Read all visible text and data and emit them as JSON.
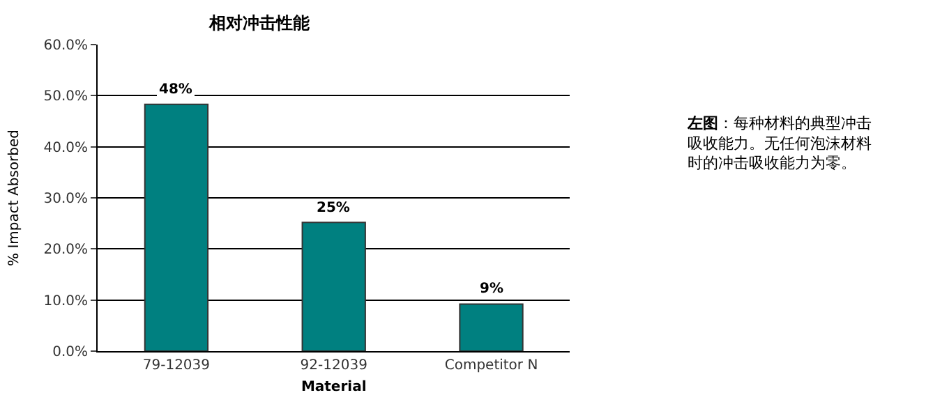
{
  "chart_data": {
    "type": "bar",
    "title": "相对冲击性能",
    "xlabel": "Material",
    "ylabel": "% Impact Absorbed",
    "categories": [
      "79-12039",
      "92-12039",
      "Competitor N"
    ],
    "values": [
      48.3,
      25.2,
      9.2
    ],
    "value_labels": [
      "48%",
      "25%",
      "9%"
    ],
    "color": "#008080",
    "ylim": [
      0,
      60
    ],
    "yticks": [
      {
        "value": 0,
        "label": "0.0%"
      },
      {
        "value": 10,
        "label": "10.0%"
      },
      {
        "value": 20,
        "label": "20.0%"
      },
      {
        "value": 30,
        "label": "30.0%"
      },
      {
        "value": 40,
        "label": "40.0%"
      },
      {
        "value": 50,
        "label": "50.0%"
      },
      {
        "value": 60,
        "label": "60.0%"
      }
    ],
    "grid": "y",
    "annotations": [
      "左图：每种材料的典型冲击吸收能力。无任何泡沫材料时的冲击吸收能力为零。"
    ]
  }
}
